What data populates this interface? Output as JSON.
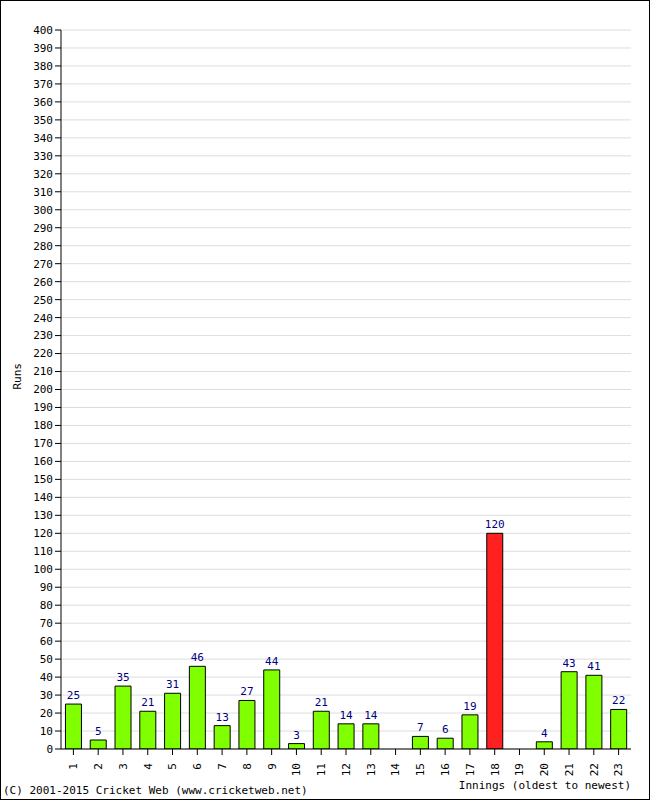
{
  "chart_data": {
    "type": "bar",
    "categories": [
      "1",
      "2",
      "3",
      "4",
      "5",
      "6",
      "7",
      "8",
      "9",
      "10",
      "11",
      "12",
      "13",
      "14",
      "15",
      "16",
      "17",
      "18",
      "19",
      "20",
      "21",
      "22",
      "23"
    ],
    "values": [
      25,
      5,
      35,
      21,
      31,
      46,
      13,
      27,
      44,
      3,
      21,
      14,
      14,
      0,
      7,
      6,
      19,
      120,
      0,
      4,
      43,
      41,
      22
    ],
    "colors": [
      "#80ff00",
      "#80ff00",
      "#80ff00",
      "#80ff00",
      "#80ff00",
      "#80ff00",
      "#80ff00",
      "#80ff00",
      "#80ff00",
      "#80ff00",
      "#80ff00",
      "#80ff00",
      "#80ff00",
      "#80ff00",
      "#80ff00",
      "#80ff00",
      "#80ff00",
      "#ff2020",
      "#80ff00",
      "#80ff00",
      "#80ff00",
      "#80ff00",
      "#80ff00"
    ],
    "x_label": "Innings (oldest to newest)",
    "y_label": "Runs",
    "annotations": [
      "(C) 2001-2015 Cricket Web (www.cricketweb.net)"
    ],
    "ylim": [
      0,
      400
    ],
    "yticks": [
      0,
      10,
      20,
      30,
      40,
      50,
      60,
      70,
      80,
      90,
      100,
      110,
      120,
      130,
      140,
      150,
      160,
      170,
      180,
      190,
      200,
      210,
      220,
      230,
      240,
      250,
      260,
      270,
      280,
      290,
      300,
      310,
      320,
      330,
      340,
      350,
      360,
      370,
      380,
      390,
      400
    ],
    "grid": true,
    "data_labels": true
  }
}
